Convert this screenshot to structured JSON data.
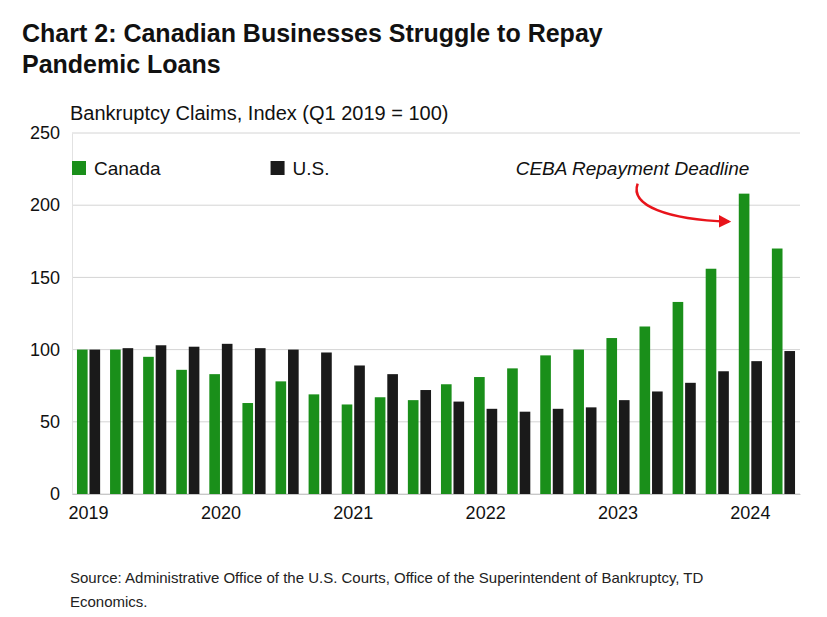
{
  "chart_data": {
    "type": "bar",
    "title": "Chart 2: Canadian Businesses Struggle to Repay Pandemic Loans",
    "subtitle": "Bankruptcy Claims, Index (Q1 2019 = 100)",
    "annotation": "CEBA Repayment Deadline",
    "source": "Source: Administrative Office of the U.S. Courts, Office of the Superintendent of Bankruptcy, TD Economics.",
    "categories": [
      "2019",
      null,
      null,
      null,
      "2020",
      null,
      null,
      null,
      "2021",
      null,
      null,
      null,
      "2022",
      null,
      null,
      null,
      "2023",
      null,
      null,
      null,
      "2024",
      null
    ],
    "series": [
      {
        "name": "Canada",
        "color": "#1a8f1a",
        "values": [
          100,
          100,
          95,
          86,
          83,
          63,
          78,
          69,
          62,
          67,
          65,
          76,
          81,
          87,
          96,
          100,
          108,
          116,
          133,
          156,
          208,
          170
        ]
      },
      {
        "name": "U.S.",
        "color": "#1a1a1a",
        "values": [
          100,
          101,
          103,
          102,
          104,
          101,
          100,
          98,
          89,
          83,
          72,
          64,
          59,
          57,
          59,
          60,
          65,
          71,
          77,
          85,
          92,
          99
        ]
      }
    ],
    "ylim": [
      0,
      250
    ],
    "yticks": [
      0,
      50,
      100,
      150,
      200,
      250
    ],
    "grid": true,
    "legend": "top-left"
  }
}
